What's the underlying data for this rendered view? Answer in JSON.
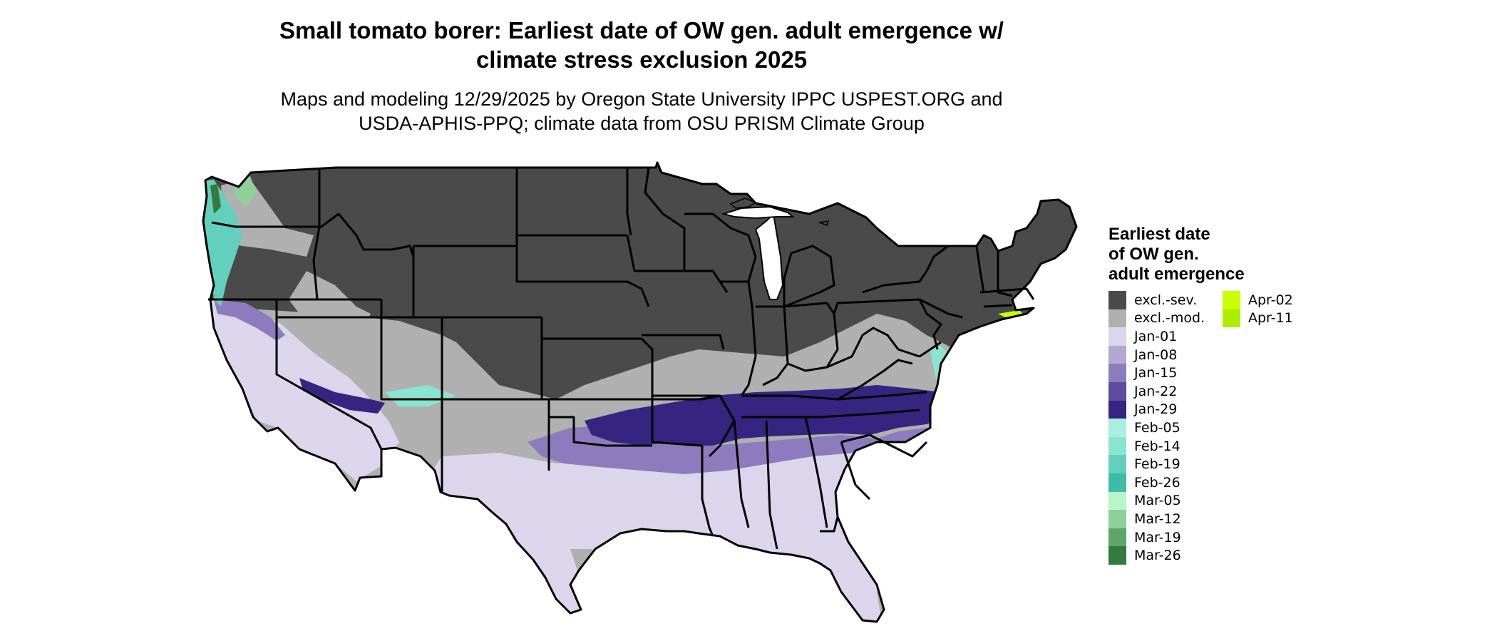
{
  "title_line1": "Small tomato borer: Earliest date of OW gen. adult emergence w/",
  "title_line2": "climate stress exclusion 2025",
  "subtitle_line1": "Maps and modeling 12/29/2025 by Oregon State University IPPC USPEST.ORG and",
  "subtitle_line2": "USDA-APHIS-PPQ; climate data from OSU PRISM Climate Group",
  "legend": {
    "title_line1": "Earliest date",
    "title_line2": "of OW gen.",
    "title_line3": "adult emergence",
    "col1": [
      {
        "label": "excl.-sev.",
        "color": "#4a4a4a"
      },
      {
        "label": "excl.-mod.",
        "color": "#b0b0b0"
      },
      {
        "label": "Jan-01",
        "color": "#dcd6ec"
      },
      {
        "label": "Jan-08",
        "color": "#b3a8d2"
      },
      {
        "label": "Jan-15",
        "color": "#8d7cbd"
      },
      {
        "label": "Jan-22",
        "color": "#5f4b9f"
      },
      {
        "label": "Jan-29",
        "color": "#352580"
      },
      {
        "label": "Feb-05",
        "color": "#a8f0e0"
      },
      {
        "label": "Feb-14",
        "color": "#89e4d0"
      },
      {
        "label": "Feb-19",
        "color": "#62d0bc"
      },
      {
        "label": "Feb-26",
        "color": "#3fbca8"
      },
      {
        "label": "Mar-05",
        "color": "#b8f5c8"
      },
      {
        "label": "Mar-12",
        "color": "#8fcf98"
      },
      {
        "label": "Mar-19",
        "color": "#5ea56a"
      },
      {
        "label": "Mar-26",
        "color": "#357a3e"
      }
    ],
    "col2": [
      {
        "label": "Apr-02",
        "color": "#ccff00"
      },
      {
        "label": "Apr-11",
        "color": "#aaee00"
      }
    ]
  }
}
